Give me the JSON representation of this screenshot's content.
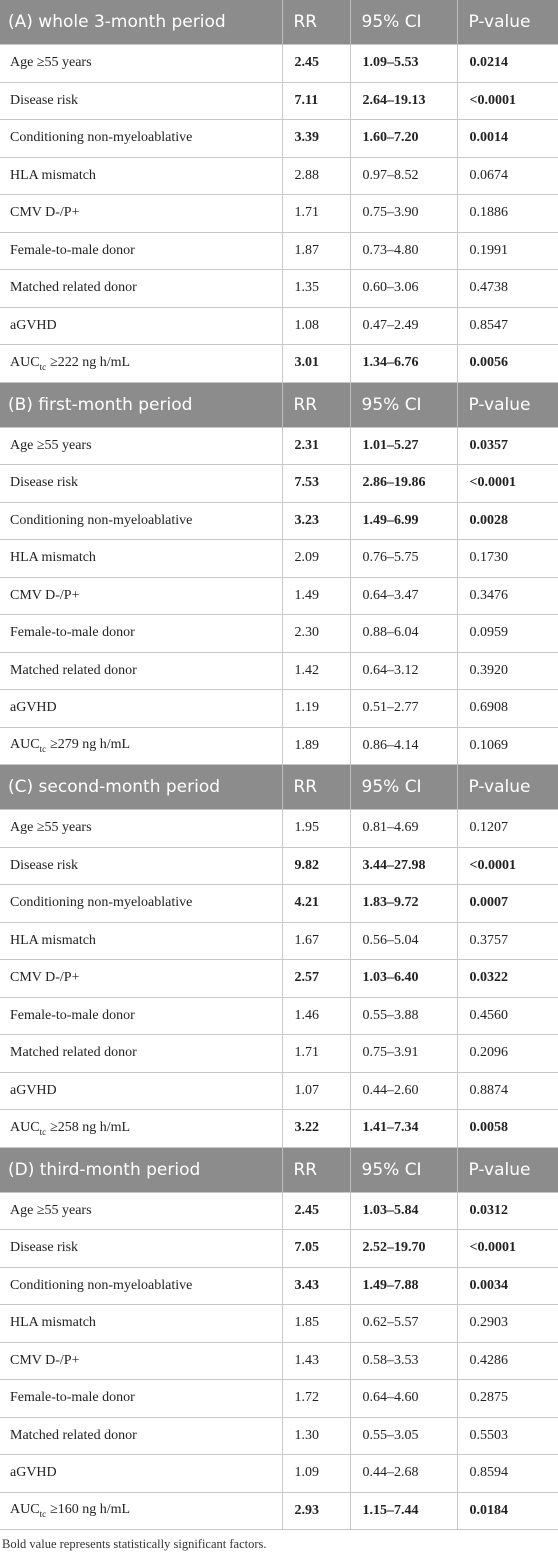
{
  "sections": [
    {
      "title": "(A) whole 3-month period",
      "columns": [
        "RR",
        "95% CI",
        "P-value"
      ],
      "rows": [
        {
          "label": "Age ≥55 years",
          "rr": "2.45",
          "ci": "1.09–5.53",
          "p": "0.0214",
          "bold": true
        },
        {
          "label": "Disease risk",
          "rr": "7.11",
          "ci": "2.64–19.13",
          "p": "<0.0001",
          "bold": true
        },
        {
          "label": "Conditioning non-myeloablative",
          "rr": "3.39",
          "ci": "1.60–7.20",
          "p": "0.0014",
          "bold": true
        },
        {
          "label": "HLA mismatch",
          "rr": "2.88",
          "ci": "0.97–8.52",
          "p": "0.0674",
          "bold": false
        },
        {
          "label": "CMV D-/P+",
          "rr": "1.71",
          "ci": "0.75–3.90",
          "p": "0.1886",
          "bold": false
        },
        {
          "label": "Female-to-male donor",
          "rr": "1.87",
          "ci": "0.73–4.80",
          "p": "0.1991",
          "bold": false
        },
        {
          "label": "Matched related donor",
          "rr": "1.35",
          "ci": "0.60–3.06",
          "p": "0.4738",
          "bold": false
        },
        {
          "label": "aGVHD",
          "rr": "1.08",
          "ci": "0.47–2.49",
          "p": "0.8547",
          "bold": false
        },
        {
          "label": {
            "main": "AUC",
            "sub": "tc",
            "after": "≥222 ng h/mL"
          },
          "rr": "3.01",
          "ci": "1.34–6.76",
          "p": "0.0056",
          "bold": true
        }
      ]
    },
    {
      "title": "(B) first-month period",
      "columns": [
        "RR",
        "95% CI",
        "P-value"
      ],
      "rows": [
        {
          "label": "Age ≥55 years",
          "rr": "2.31",
          "ci": "1.01–5.27",
          "p": "0.0357",
          "bold": true
        },
        {
          "label": "Disease risk",
          "rr": "7.53",
          "ci": "2.86–19.86",
          "p": "<0.0001",
          "bold": true
        },
        {
          "label": "Conditioning non-myeloablative",
          "rr": "3.23",
          "ci": "1.49–6.99",
          "p": "0.0028",
          "bold": true
        },
        {
          "label": "HLA mismatch",
          "rr": "2.09",
          "ci": "0.76–5.75",
          "p": "0.1730",
          "bold": false
        },
        {
          "label": "CMV D-/P+",
          "rr": "1.49",
          "ci": "0.64–3.47",
          "p": "0.3476",
          "bold": false
        },
        {
          "label": "Female-to-male donor",
          "rr": "2.30",
          "ci": "0.88–6.04",
          "p": "0.0959",
          "bold": false
        },
        {
          "label": "Matched related donor",
          "rr": "1.42",
          "ci": "0.64–3.12",
          "p": "0.3920",
          "bold": false
        },
        {
          "label": "aGVHD",
          "rr": "1.19",
          "ci": "0.51–2.77",
          "p": "0.6908",
          "bold": false
        },
        {
          "label": {
            "main": "AUC",
            "sub": "tc",
            "after": "≥279 ng h/mL"
          },
          "rr": "1.89",
          "ci": "0.86–4.14",
          "p": "0.1069",
          "bold": false
        }
      ]
    },
    {
      "title": "(C) second-month period",
      "columns": [
        "RR",
        "95% CI",
        "P-value"
      ],
      "rows": [
        {
          "label": "Age ≥55 years",
          "rr": "1.95",
          "ci": "0.81–4.69",
          "p": "0.1207",
          "bold": false
        },
        {
          "label": "Disease risk",
          "rr": "9.82",
          "ci": "3.44–27.98",
          "p": "<0.0001",
          "bold": true
        },
        {
          "label": "Conditioning non-myeloablative",
          "rr": "4.21",
          "ci": "1.83–9.72",
          "p": "0.0007",
          "bold": true
        },
        {
          "label": "HLA mismatch",
          "rr": "1.67",
          "ci": "0.56–5.04",
          "p": "0.3757",
          "bold": false
        },
        {
          "label": "CMV D-/P+",
          "rr": "2.57",
          "ci": "1.03–6.40",
          "p": "0.0322",
          "bold": true
        },
        {
          "label": "Female-to-male donor",
          "rr": "1.46",
          "ci": "0.55–3.88",
          "p": "0.4560",
          "bold": false
        },
        {
          "label": "Matched related donor",
          "rr": "1.71",
          "ci": "0.75–3.91",
          "p": "0.2096",
          "bold": false
        },
        {
          "label": "aGVHD",
          "rr": "1.07",
          "ci": "0.44–2.60",
          "p": "0.8874",
          "bold": false
        },
        {
          "label": {
            "main": "AUC",
            "sub": "tc",
            "after": "≥258 ng h/mL"
          },
          "rr": "3.22",
          "ci": "1.41–7.34",
          "p": "0.0058",
          "bold": true
        }
      ]
    },
    {
      "title": "(D) third-month period",
      "columns": [
        "RR",
        "95% CI",
        "P-value"
      ],
      "rows": [
        {
          "label": "Age ≥55 years",
          "rr": "2.45",
          "ci": "1.03–5.84",
          "p": "0.0312",
          "bold": true
        },
        {
          "label": "Disease risk",
          "rr": "7.05",
          "ci": "2.52–19.70",
          "p": "<0.0001",
          "bold": true
        },
        {
          "label": "Conditioning non-myeloablative",
          "rr": "3.43",
          "ci": "1.49–7.88",
          "p": "0.0034",
          "bold": true
        },
        {
          "label": "HLA mismatch",
          "rr": "1.85",
          "ci": "0.62–5.57",
          "p": "0.2903",
          "bold": false
        },
        {
          "label": "CMV D-/P+",
          "rr": "1.43",
          "ci": "0.58–3.53",
          "p": "0.4286",
          "bold": false
        },
        {
          "label": "Female-to-male donor",
          "rr": "1.72",
          "ci": "0.64–4.60",
          "p": "0.2875",
          "bold": false
        },
        {
          "label": "Matched related donor",
          "rr": "1.30",
          "ci": "0.55–3.05",
          "p": "0.5503",
          "bold": false
        },
        {
          "label": "aGVHD",
          "rr": "1.09",
          "ci": "0.44–2.68",
          "p": "0.8594",
          "bold": false
        },
        {
          "label": {
            "main": "AUC",
            "sub": "tc",
            "after": "≥160 ng h/mL"
          },
          "rr": "2.93",
          "ci": "1.15–7.44",
          "p": "0.0184",
          "bold": true
        }
      ]
    }
  ],
  "footnote": "Bold value represents statistically significant factors."
}
